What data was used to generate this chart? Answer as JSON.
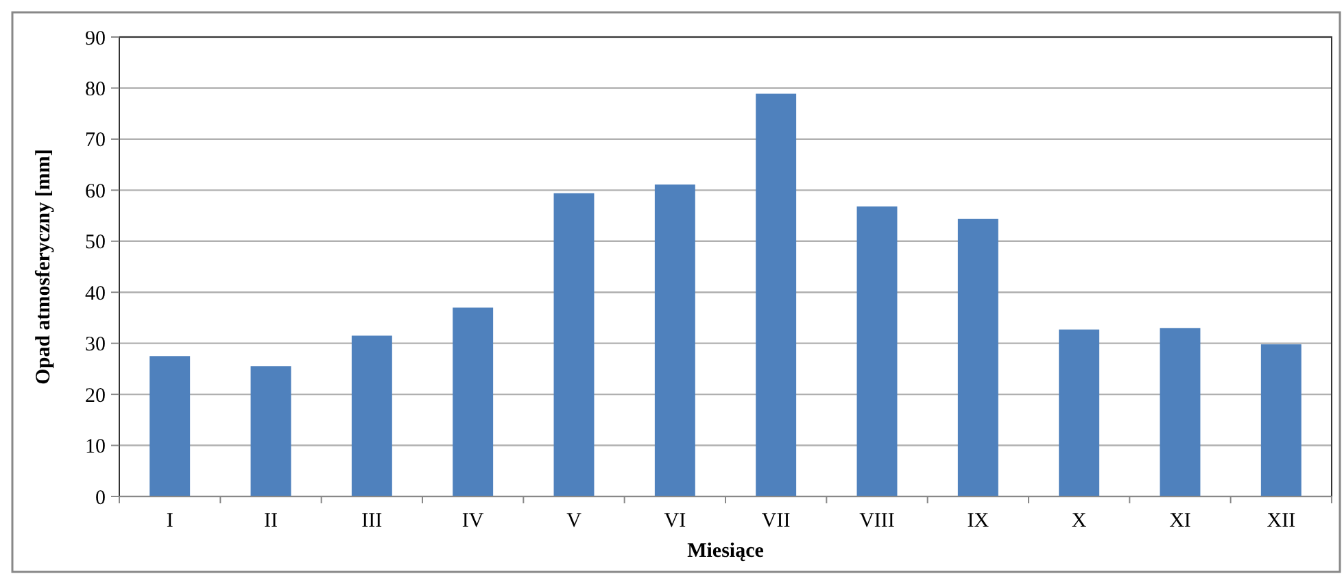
{
  "chart_data": {
    "type": "bar",
    "xlabel": "Miesiące",
    "ylabel": "Opad atmosferyczny [mm]",
    "categories": [
      "I",
      "II",
      "III",
      "IV",
      "V",
      "VI",
      "VII",
      "VIII",
      "IX",
      "X",
      "XI",
      "XII"
    ],
    "values": [
      27.5,
      25.5,
      31.5,
      37.0,
      59.4,
      61.1,
      78.9,
      56.8,
      54.4,
      32.7,
      33.0,
      29.8
    ],
    "color": "#4f81bd",
    "ylim": [
      0,
      90
    ],
    "yticks": [
      0,
      10,
      20,
      30,
      40,
      50,
      60,
      70,
      80,
      90
    ],
    "grid": "y"
  }
}
